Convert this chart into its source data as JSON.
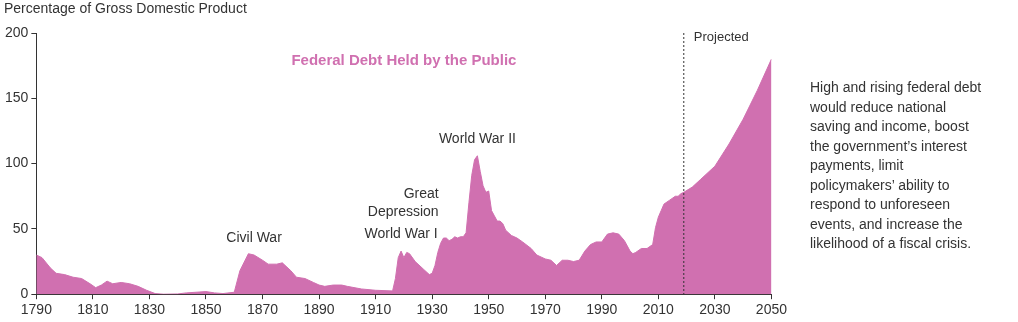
{
  "chart_data": {
    "type": "area",
    "title": "Federal Debt Held by the Public",
    "ylabel": "Percentage of Gross Domestic Product",
    "x": [
      1790,
      1792,
      1795,
      1797,
      1800,
      1803,
      1806,
      1809,
      1811,
      1813,
      1815,
      1817,
      1820,
      1823,
      1826,
      1829,
      1832,
      1835,
      1840,
      1843,
      1850,
      1853,
      1856,
      1860,
      1862,
      1865,
      1867,
      1870,
      1872,
      1875,
      1877,
      1880,
      1882,
      1885,
      1888,
      1890,
      1892,
      1895,
      1898,
      1900,
      1905,
      1910,
      1916,
      1917,
      1918,
      1919,
      1920,
      1921,
      1922,
      1924,
      1927,
      1929,
      1930,
      1931,
      1932,
      1933,
      1934,
      1935,
      1936,
      1937,
      1938,
      1939,
      1940,
      1941,
      1942,
      1943,
      1944,
      1945,
      1946,
      1947,
      1948,
      1949,
      1950,
      1951,
      1952,
      1953,
      1954,
      1955,
      1956,
      1958,
      1960,
      1962,
      1965,
      1967,
      1970,
      1972,
      1974,
      1976,
      1978,
      1980,
      1982,
      1984,
      1986,
      1988,
      1990,
      1992,
      1994,
      1996,
      1998,
      2000,
      2001,
      2002,
      2004,
      2006,
      2008,
      2009,
      2010,
      2011,
      2012,
      2014,
      2016,
      2017,
      2018,
      2019,
      2022,
      2025,
      2030,
      2035,
      2040,
      2045,
      2050
    ],
    "series": [
      {
        "color": "#d070b0",
        "values": [
          30,
          28,
          20,
          16,
          15,
          13,
          12,
          8,
          5,
          7,
          10,
          8,
          9,
          8,
          6,
          3,
          0.5,
          0,
          0.2,
          1,
          2,
          1,
          0.5,
          1.5,
          18,
          31,
          30,
          26,
          23,
          23,
          24,
          18,
          13,
          12,
          9,
          7,
          6,
          7,
          7,
          6,
          4,
          3,
          2.5,
          12,
          28,
          33,
          28,
          32,
          31,
          25,
          19,
          15,
          16,
          22,
          32,
          39,
          43,
          43,
          41,
          42,
          44,
          43,
          44,
          44,
          47,
          70,
          91,
          103,
          106,
          94,
          83,
          78,
          79,
          64,
          60,
          56,
          56,
          54,
          49,
          45,
          43,
          40,
          35,
          30,
          27,
          26,
          22,
          26,
          26,
          25,
          26,
          33,
          38,
          40,
          40,
          46,
          47,
          46,
          41,
          33,
          31,
          32,
          35,
          35,
          38,
          51,
          59,
          64,
          69,
          72,
          75,
          75,
          77,
          78,
          82,
          88,
          98,
          115,
          134,
          156,
          180
        ]
      }
    ],
    "xlim": [
      1790,
      2050
    ],
    "xticks": [
      1790,
      1810,
      1830,
      1850,
      1870,
      1890,
      1910,
      1930,
      1950,
      1970,
      1990,
      2010,
      2030,
      2050
    ],
    "ylim": [
      0,
      200
    ],
    "yticks": [
      0,
      50,
      100,
      150,
      200
    ],
    "ref_lines": [
      {
        "axis": "x",
        "value": 2019,
        "label": "Projected",
        "color": "#333333",
        "line_style": "dotted"
      }
    ],
    "annotations": [
      {
        "text": "Civil War",
        "x": 1867,
        "y": 30
      },
      {
        "text": "World War I",
        "x": 1919,
        "y": 33
      },
      {
        "text": "Great Depression",
        "x": 1933,
        "y": 39
      },
      {
        "text": "World War II",
        "x": 1946,
        "y": 106
      },
      "High and rising federal debt would reduce national saving and income, boost the government’s interest payments, limit policymakers’ ability to respond to unforeseen events, and increase the likelihood of a fiscal crisis."
    ]
  }
}
